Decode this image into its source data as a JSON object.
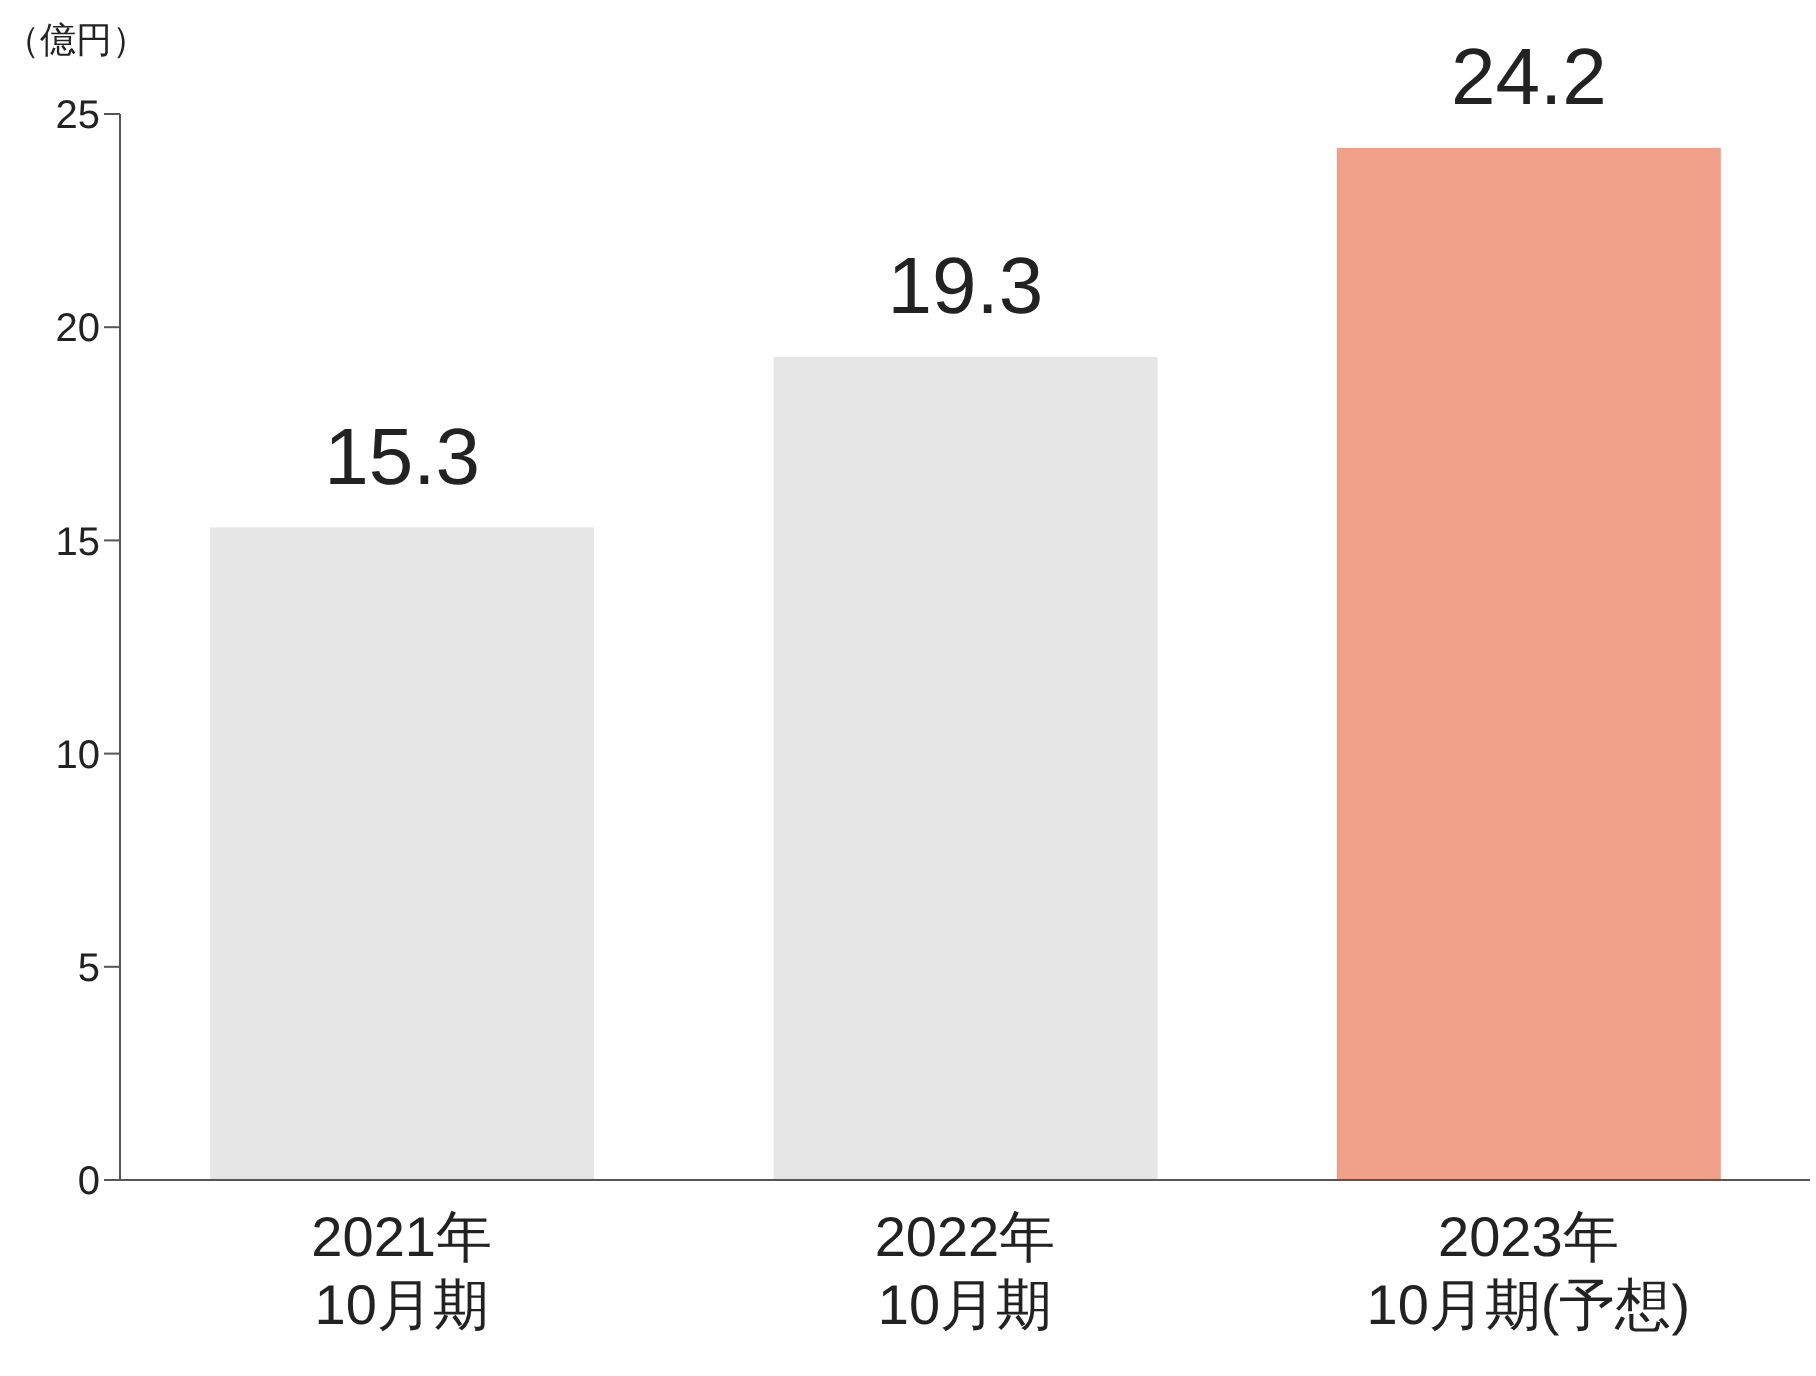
{
  "chart_data": {
    "type": "bar",
    "ylabel": "（億円）",
    "categories": [
      "2021年\n10月期",
      "2022年\n10月期",
      "2023年\n10月期(予想)"
    ],
    "values": [
      15.3,
      19.3,
      24.2
    ],
    "colors": [
      "#e6e6e6",
      "#e6e6e6",
      "#f0a088"
    ],
    "ylim": [
      0,
      25
    ],
    "yticks": [
      0,
      5,
      10,
      15,
      20,
      25
    ],
    "grid": false,
    "legend": false,
    "data_labels": true
  }
}
